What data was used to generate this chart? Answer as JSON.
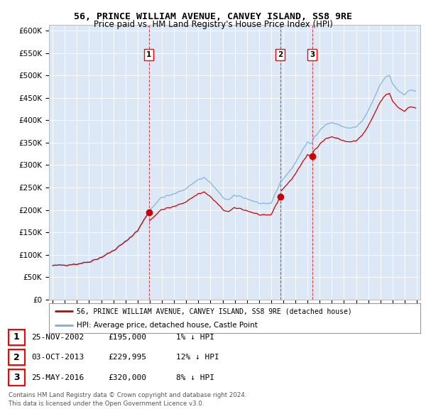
{
  "title1": "56, PRINCE WILLIAM AVENUE, CANVEY ISLAND, SS8 9RE",
  "title2": "Price paid vs. HM Land Registry's House Price Index (HPI)",
  "sales": [
    {
      "date_num": 2002.92,
      "price": 195000,
      "label": "1",
      "hpi_scale": 0.99
    },
    {
      "date_num": 2013.75,
      "price": 229995,
      "label": "2",
      "hpi_scale": 0.88
    },
    {
      "date_num": 2016.37,
      "price": 320000,
      "label": "3",
      "hpi_scale": 0.92
    }
  ],
  "sale_dates_str": [
    "25-NOV-2002",
    "03-OCT-2013",
    "25-MAY-2016"
  ],
  "sale_prices_str": [
    "£195,000",
    "£229,995",
    "£320,000"
  ],
  "sale_hpi_str": [
    "1% ↓ HPI",
    "12% ↓ HPI",
    "8% ↓ HPI"
  ],
  "legend_line1": "56, PRINCE WILLIAM AVENUE, CANVEY ISLAND, SS8 9RE (detached house)",
  "legend_line2": "HPI: Average price, detached house, Castle Point",
  "footer1": "Contains HM Land Registry data © Crown copyright and database right 2024.",
  "footer2": "This data is licensed under the Open Government Licence v3.0.",
  "hpi_color": "#7bafd4",
  "sale_color": "#cc0000",
  "plot_bg": "#dce8f5",
  "ylim": [
    0,
    600000
  ],
  "yticks": [
    0,
    50000,
    100000,
    150000,
    200000,
    250000,
    300000,
    350000,
    400000,
    450000,
    500000,
    550000,
    600000
  ]
}
